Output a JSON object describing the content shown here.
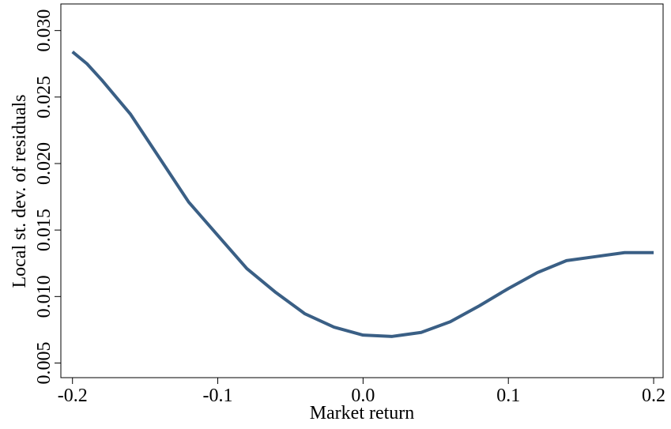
{
  "chart_data": {
    "type": "line",
    "xlabel": "Market return",
    "ylabel": "Local st. dev. of residuals",
    "x": [
      -0.2,
      -0.19,
      -0.18,
      -0.16,
      -0.14,
      -0.12,
      -0.1,
      -0.08,
      -0.06,
      -0.04,
      -0.02,
      0,
      0.02,
      0.04,
      0.06,
      0.08,
      0.1,
      0.12,
      0.14,
      0.16,
      0.18,
      0.2
    ],
    "series": [
      {
        "color": "#3a5f85",
        "values": [
          0.0284,
          0.0275,
          0.0263,
          0.0237,
          0.0204,
          0.0171,
          0.0146,
          0.0121,
          0.0103,
          0.0087,
          0.0077,
          0.0071,
          0.007,
          0.0073,
          0.0081,
          0.0093,
          0.0106,
          0.0118,
          0.0127,
          0.013,
          0.0133,
          0.0133
        ]
      }
    ],
    "xlim": [
      -0.208,
      0.2065
    ],
    "ylim": [
      0.0039,
      0.032
    ],
    "xticks": [
      -0.2,
      -0.1,
      {
        "value": 0,
        "label": "0.0"
      },
      0.1,
      0.2
    ],
    "yticks": [
      0.005,
      {
        "value": 0.01,
        "label": "0.010"
      },
      0.015,
      {
        "value": 0.02,
        "label": "0.020"
      },
      0.025,
      {
        "value": 0.03,
        "label": "0.030"
      }
    ]
  }
}
